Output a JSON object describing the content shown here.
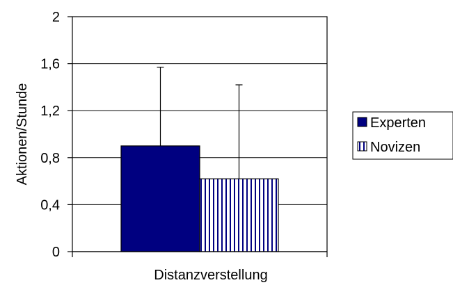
{
  "chart_data": {
    "type": "bar",
    "categories": [
      "Distanzverstellung"
    ],
    "series": [
      {
        "name": "Experten",
        "values": [
          0.9
        ],
        "error_upper": [
          1.57
        ],
        "color": "#000080",
        "pattern": "solid"
      },
      {
        "name": "Novizen",
        "values": [
          0.62
        ],
        "error_upper": [
          1.42
        ],
        "color": "#000080",
        "pattern": "vertical-stripes"
      }
    ],
    "title": "",
    "xlabel": "",
    "ylabel": "Aktionen/Stunde",
    "ylim": [
      0,
      2
    ],
    "yticks": [
      "0",
      "0,4",
      "0,8",
      "1,2",
      "1,6",
      "2"
    ],
    "ytick_values": [
      0,
      0.4,
      0.8,
      1.2,
      1.6,
      2
    ],
    "grid": true,
    "legend_position": "right"
  }
}
